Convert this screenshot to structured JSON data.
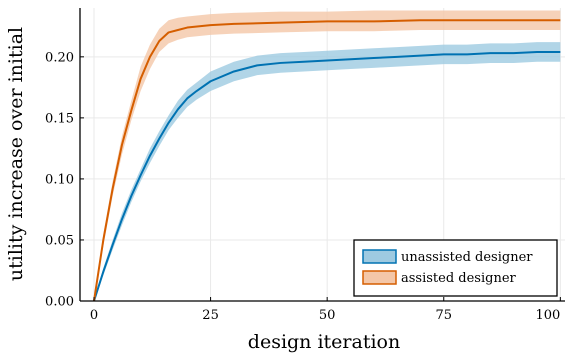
{
  "chart_data": {
    "type": "line",
    "title": "",
    "xlabel": "design iteration",
    "ylabel": "utility increase over initial",
    "xlim": [
      -3,
      101
    ],
    "ylim": [
      0,
      0.24
    ],
    "xticks": [
      0,
      25,
      50,
      75,
      100
    ],
    "xtick_labels": [
      "0",
      "25",
      "50",
      "75",
      "100"
    ],
    "yticks": [
      0.0,
      0.05,
      0.1,
      0.15,
      0.2
    ],
    "ytick_labels": [
      "0.00",
      "0.05",
      "0.10",
      "0.15",
      "0.20"
    ],
    "grid": true,
    "legend_position": "bottom-right",
    "series": [
      {
        "name": "unassisted designer",
        "color": "#0072b2",
        "fill_color": "#9ecae1",
        "x": [
          0,
          2,
          4,
          6,
          8,
          10,
          12,
          14,
          16,
          18,
          20,
          22,
          25,
          30,
          35,
          40,
          45,
          50,
          55,
          60,
          65,
          70,
          75,
          80,
          85,
          90,
          95,
          100
        ],
        "mean": [
          0.0,
          0.024,
          0.046,
          0.067,
          0.086,
          0.103,
          0.119,
          0.133,
          0.146,
          0.157,
          0.166,
          0.172,
          0.18,
          0.188,
          0.193,
          0.195,
          0.196,
          0.197,
          0.198,
          0.199,
          0.2,
          0.201,
          0.202,
          0.202,
          0.203,
          0.203,
          0.204,
          0.204
        ],
        "lower": [
          0.0,
          0.021,
          0.042,
          0.062,
          0.081,
          0.098,
          0.113,
          0.127,
          0.14,
          0.15,
          0.159,
          0.165,
          0.172,
          0.18,
          0.185,
          0.187,
          0.188,
          0.189,
          0.19,
          0.191,
          0.192,
          0.193,
          0.194,
          0.194,
          0.195,
          0.195,
          0.196,
          0.196
        ],
        "upper": [
          0.0,
          0.027,
          0.05,
          0.072,
          0.091,
          0.108,
          0.125,
          0.139,
          0.152,
          0.164,
          0.173,
          0.179,
          0.188,
          0.196,
          0.201,
          0.203,
          0.204,
          0.205,
          0.206,
          0.207,
          0.208,
          0.209,
          0.21,
          0.21,
          0.211,
          0.211,
          0.212,
          0.212
        ]
      },
      {
        "name": "assisted designer",
        "color": "#d55e00",
        "fill_color": "#f4c7a8",
        "x": [
          0,
          2,
          4,
          6,
          8,
          10,
          12,
          14,
          16,
          18,
          20,
          25,
          30,
          40,
          50,
          60,
          70,
          80,
          90,
          100
        ],
        "mean": [
          0.0,
          0.05,
          0.092,
          0.128,
          0.156,
          0.182,
          0.2,
          0.213,
          0.22,
          0.222,
          0.224,
          0.226,
          0.227,
          0.228,
          0.229,
          0.229,
          0.23,
          0.23,
          0.23,
          0.23
        ],
        "lower": [
          0.0,
          0.045,
          0.086,
          0.12,
          0.148,
          0.172,
          0.19,
          0.204,
          0.211,
          0.214,
          0.216,
          0.218,
          0.219,
          0.22,
          0.221,
          0.221,
          0.222,
          0.222,
          0.222,
          0.222
        ],
        "upper": [
          0.0,
          0.055,
          0.098,
          0.135,
          0.164,
          0.192,
          0.21,
          0.223,
          0.23,
          0.232,
          0.233,
          0.235,
          0.236,
          0.237,
          0.237,
          0.238,
          0.238,
          0.238,
          0.238,
          0.238
        ]
      }
    ]
  }
}
